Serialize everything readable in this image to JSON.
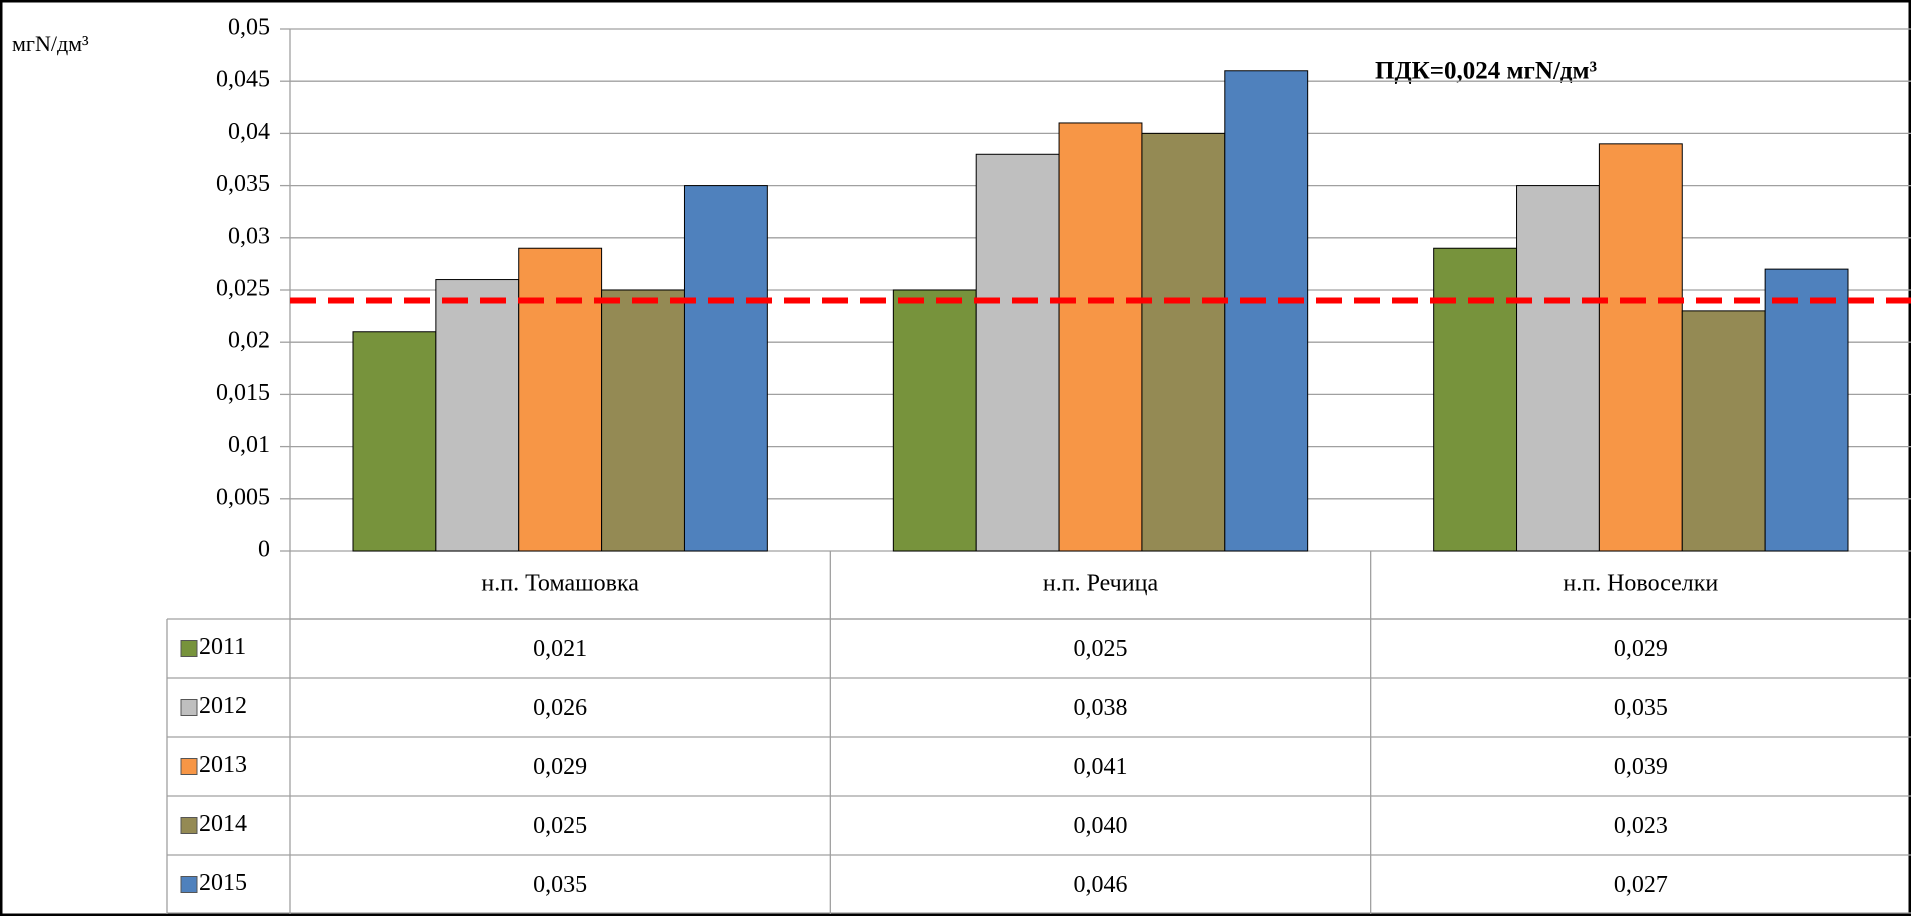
{
  "chart_data": {
    "type": "bar",
    "y_label": "мгN/дм³",
    "annotation": "ПДК=0,024 мгN/дм³",
    "threshold": {
      "value": 0.024,
      "color": "#ff0000"
    },
    "categories": [
      "н.п. Томашовка",
      "н.п. Речица",
      "н.п. Новоселки"
    ],
    "series": [
      {
        "name": "2011",
        "color": "#77933c",
        "values": [
          0.021,
          0.025,
          0.029
        ],
        "value_labels": [
          "0,021",
          "0,025",
          "0,029"
        ]
      },
      {
        "name": "2012",
        "color": "#bfbfbf",
        "values": [
          0.026,
          0.038,
          0.035
        ],
        "value_labels": [
          "0,026",
          "0,038",
          "0,035"
        ]
      },
      {
        "name": "2013",
        "color": "#f79646",
        "values": [
          0.029,
          0.041,
          0.039
        ],
        "value_labels": [
          "0,029",
          "0,041",
          "0,039"
        ]
      },
      {
        "name": "2014",
        "color": "#948a54",
        "values": [
          0.025,
          0.04,
          0.023
        ],
        "value_labels": [
          "0,025",
          "0,040",
          "0,023"
        ]
      },
      {
        "name": "2015",
        "color": "#4f81bd",
        "values": [
          0.035,
          0.046,
          0.027
        ],
        "value_labels": [
          "0,035",
          "0,046",
          "0,027"
        ]
      }
    ],
    "ylim": [
      0,
      0.05
    ],
    "yticks": [
      0,
      {
        "value": 0.005,
        "label": "0,005"
      },
      {
        "value": 0.01,
        "label": "0,01"
      },
      {
        "value": 0.015,
        "label": "0,015"
      },
      {
        "value": 0.02,
        "label": "0,02"
      },
      {
        "value": 0.025,
        "label": "0,025"
      },
      {
        "value": 0.03,
        "label": "0,03"
      },
      {
        "value": 0.035,
        "label": "0,035"
      },
      {
        "value": 0.04,
        "label": "0,04"
      },
      {
        "value": 0.045,
        "label": "0,045"
      },
      {
        "value": 0.05,
        "label": "0,05"
      }
    ],
    "grid": true,
    "data_table": true
  }
}
